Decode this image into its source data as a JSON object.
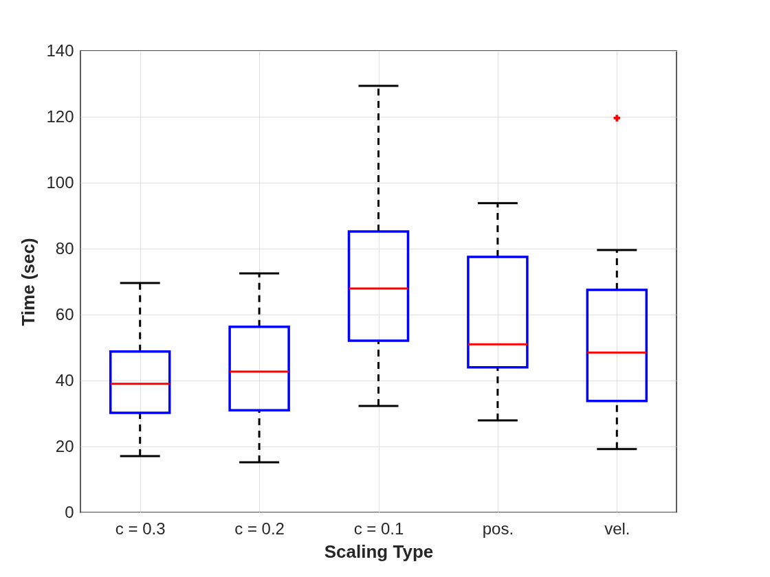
{
  "chart_data": {
    "type": "box",
    "xlabel": "Scaling Type",
    "ylabel": "Time (sec)",
    "categories": [
      "c = 0.3",
      "c = 0.2",
      "c = 0.1",
      "pos.",
      "vel."
    ],
    "ylim": [
      0,
      140
    ],
    "yticks": [
      0,
      20,
      40,
      60,
      80,
      100,
      120,
      140
    ],
    "grid": true,
    "series": [
      {
        "color": "#0000ff",
        "boxes": [
          {
            "low": 17.1,
            "q1": 30.2,
            "median": 39,
            "q3": 48.8,
            "high": 69.6
          },
          {
            "low": 15.2,
            "q1": 31,
            "median": 42.7,
            "q3": 56.3,
            "high": 72.5
          },
          {
            "low": 32.3,
            "q1": 52.1,
            "median": 67.9,
            "q3": 85.2,
            "high": 129.4
          },
          {
            "low": 27.9,
            "q1": 44,
            "median": 51,
            "q3": 77.5,
            "high": 93.8
          },
          {
            "low": 19.2,
            "q1": 33.8,
            "median": 48.5,
            "q3": 67.5,
            "high": 79.6,
            "outliers": [
              119.6
            ]
          }
        ]
      }
    ]
  }
}
